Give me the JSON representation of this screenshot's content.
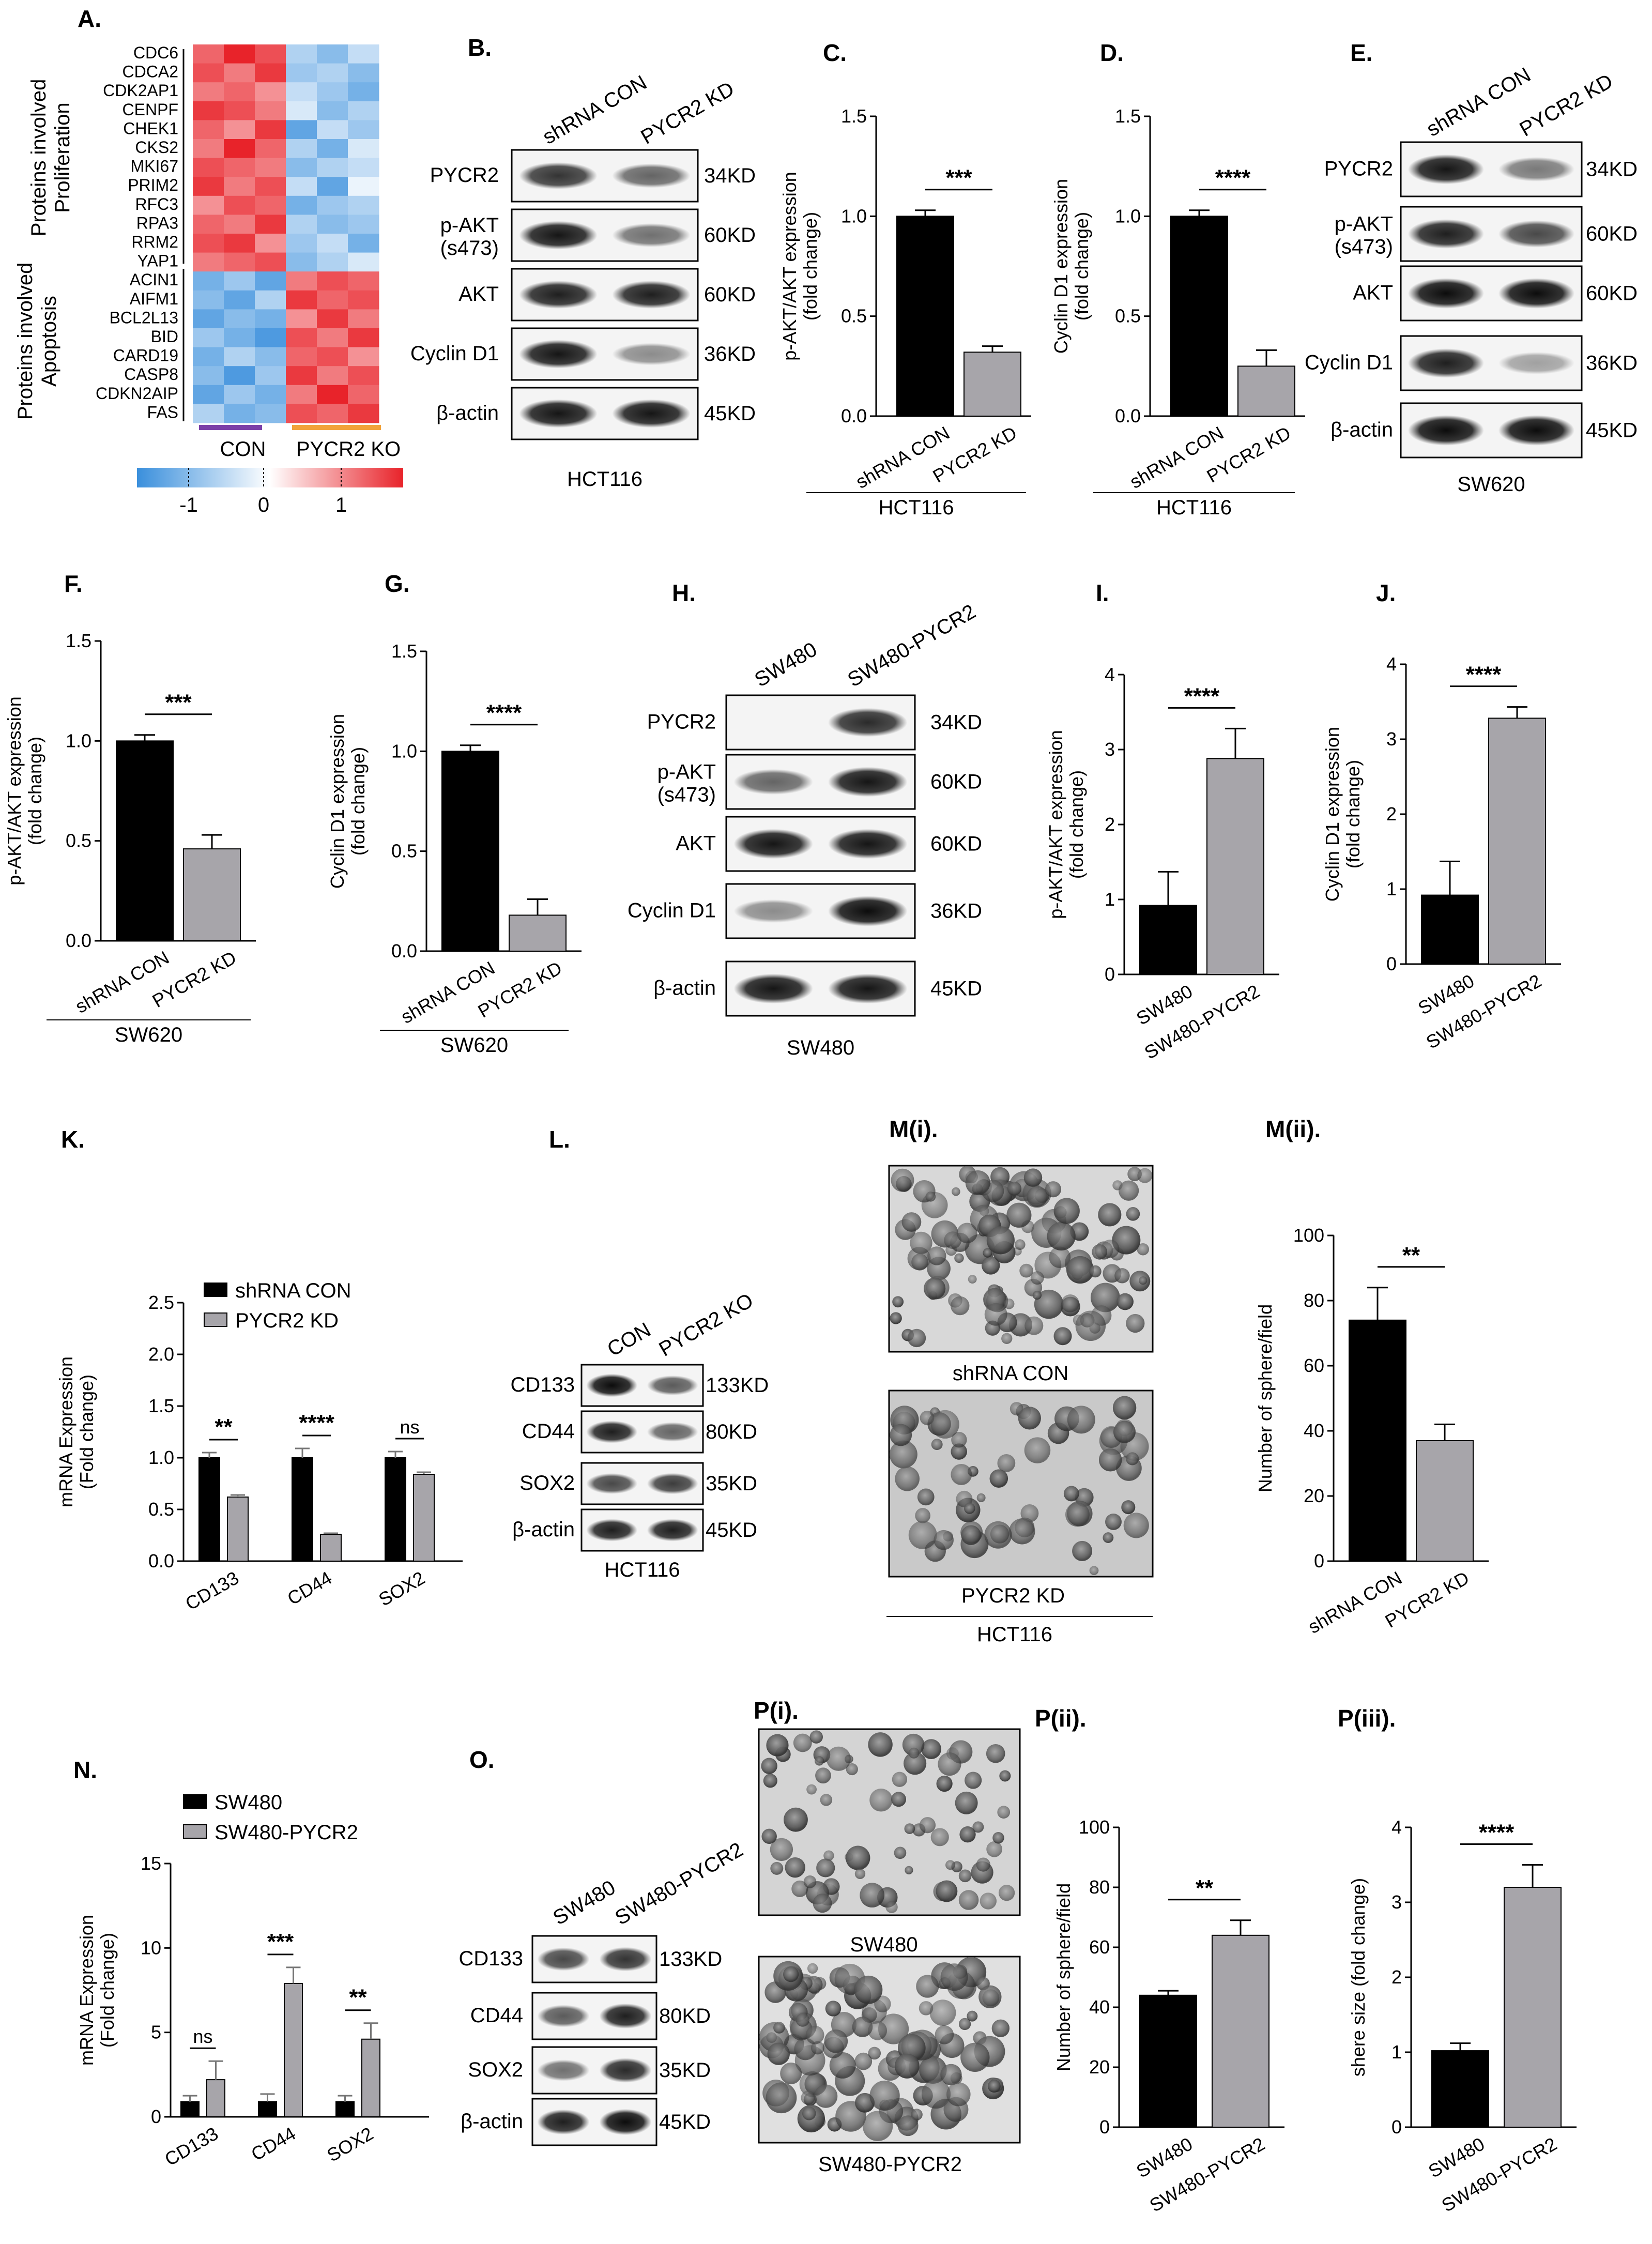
{
  "panel_labels": {
    "A": "A.",
    "B": "B.",
    "C": "C.",
    "D": "D.",
    "E": "E.",
    "F": "F.",
    "G": "G.",
    "H": "H.",
    "I": "I.",
    "J": "J.",
    "K": "K.",
    "L": "L.",
    "Mi": "M(i).",
    "Mii": "M(ii).",
    "N": "N.",
    "O": "O.",
    "Pi": "P(i).",
    "Pii": "P(ii).",
    "Piii": "P(iii)."
  },
  "heatmap": {
    "group_proliferation": "Proteins involved Proliferation",
    "group_apoptosis": "Proteins involved Apoptosis",
    "genes": [
      "CDC6",
      "CDCA2",
      "CDK2AP1",
      "CENPF",
      "CHEK1",
      "CKS2",
      "MKI67",
      "PRIM2",
      "RFC3",
      "RPA3",
      "RRM2",
      "YAP1",
      "ACIN1",
      "AIFM1",
      "BCL2L13",
      "BID",
      "CARD19",
      "CASP8",
      "CDKN2AIP",
      "FAS"
    ],
    "group_con": "CON",
    "group_ko": "PYCR2 KO",
    "scale_ticks": [
      "-1",
      "0",
      "1"
    ],
    "colors": {
      "low": "#3a8fdc",
      "mid": "#ffffff",
      "high": "#e8232a",
      "con_bar": "#7b3fa8",
      "ko_bar": "#f2a23a"
    },
    "values": [
      [
        0.7,
        1.0,
        0.8,
        -0.4,
        -0.6,
        -0.3
      ],
      [
        0.8,
        0.6,
        0.9,
        -0.5,
        -0.4,
        -0.6
      ],
      [
        0.6,
        0.7,
        0.5,
        -0.3,
        -0.5,
        -0.7
      ],
      [
        0.9,
        0.8,
        0.6,
        -0.2,
        -0.6,
        -0.4
      ],
      [
        0.7,
        0.5,
        0.9,
        -0.8,
        -0.3,
        -0.5
      ],
      [
        0.6,
        1.0,
        0.7,
        -0.4,
        -0.7,
        -0.2
      ],
      [
        0.8,
        0.7,
        0.6,
        -0.6,
        -0.4,
        -0.3
      ],
      [
        0.9,
        0.6,
        0.8,
        -0.3,
        -0.8,
        -0.1
      ],
      [
        0.5,
        0.8,
        0.7,
        -0.7,
        -0.5,
        -0.4
      ],
      [
        0.7,
        0.6,
        0.9,
        -0.4,
        -0.6,
        -0.5
      ],
      [
        0.8,
        0.9,
        0.5,
        -0.5,
        -0.3,
        -0.7
      ],
      [
        0.6,
        0.7,
        0.8,
        -0.6,
        -0.4,
        -0.2
      ],
      [
        -0.7,
        -0.5,
        -0.8,
        0.6,
        0.8,
        0.7
      ],
      [
        -0.6,
        -0.8,
        -0.4,
        0.9,
        0.7,
        0.8
      ],
      [
        -0.8,
        -0.6,
        -0.7,
        0.5,
        0.9,
        0.6
      ],
      [
        -0.5,
        -0.7,
        -0.9,
        0.8,
        0.6,
        0.9
      ],
      [
        -0.7,
        -0.4,
        -0.6,
        0.7,
        0.8,
        0.5
      ],
      [
        -0.6,
        -0.9,
        -0.5,
        0.9,
        0.6,
        0.8
      ],
      [
        -0.8,
        -0.5,
        -0.7,
        0.6,
        1.0,
        0.7
      ],
      [
        -0.4,
        -0.7,
        -0.6,
        0.8,
        0.7,
        0.9
      ]
    ]
  },
  "blots": {
    "B": {
      "lanes": [
        "shRNA CON",
        "PYCR2 KD"
      ],
      "rows": [
        "PYCR2",
        "p-AKT\n(s473)",
        "AKT",
        "Cyclin D1",
        "β-actin"
      ],
      "sizes": [
        "34KD",
        "60KD",
        "60KD",
        "36KD",
        "45KD"
      ],
      "cell": "HCT116"
    },
    "E": {
      "lanes": [
        "shRNA CON",
        "PYCR2 KD"
      ],
      "rows": [
        "PYCR2",
        "p-AKT\n(s473)",
        "AKT",
        "Cyclin D1",
        "β-actin"
      ],
      "sizes": [
        "34KD",
        "60KD",
        "60KD",
        "36KD",
        "45KD"
      ],
      "cell": "SW620"
    },
    "H": {
      "lanes": [
        "SW480",
        "SW480-PYCR2"
      ],
      "rows": [
        "PYCR2",
        "p-AKT\n(s473)",
        "AKT",
        "Cyclin D1",
        "β-actin"
      ],
      "sizes": [
        "34KD",
        "60KD",
        "60KD",
        "36KD",
        "45KD"
      ],
      "cell": "SW480"
    },
    "L": {
      "lanes": [
        "CON",
        "PYCR2 KO"
      ],
      "rows": [
        "CD133",
        "CD44",
        "SOX2",
        "β-actin"
      ],
      "sizes": [
        "133KD",
        "80KD",
        "35KD",
        "45KD"
      ],
      "cell": "HCT116"
    },
    "O": {
      "lanes": [
        "SW480",
        "SW480-PYCR2"
      ],
      "rows": [
        "CD133",
        "CD44",
        "SOX2",
        "β-actin"
      ],
      "sizes": [
        "133KD",
        "80KD",
        "35KD",
        "45KD"
      ],
      "cell": ""
    }
  },
  "images": {
    "Mi_top": "shRNA CON",
    "Mi_bottom": "PYCR2 KD",
    "Mi_group": "HCT116",
    "Pi_top": "SW480",
    "Pi_bottom": "SW480-PYCR2"
  },
  "chart_data": [
    {
      "id": "C",
      "type": "bar",
      "categories": [
        "shRNA CON",
        "PYCR2 KD"
      ],
      "values": [
        1.0,
        0.32
      ],
      "errors": [
        0.03,
        0.03
      ],
      "ylabel": "p-AKT/AKT expression\n(fold change)",
      "ylim": [
        0,
        1.5
      ],
      "yticks": [
        "0.0",
        "0.5",
        "1.0",
        "1.5"
      ],
      "group": "HCT116",
      "sig": "***"
    },
    {
      "id": "D",
      "type": "bar",
      "categories": [
        "shRNA CON",
        "PYCR2 KD"
      ],
      "values": [
        1.0,
        0.25
      ],
      "errors": [
        0.03,
        0.08
      ],
      "ylabel": "Cyclin D1 expression\n(fold change)",
      "ylim": [
        0,
        1.5
      ],
      "yticks": [
        "0.0",
        "0.5",
        "1.0",
        "1.5"
      ],
      "group": "HCT116",
      "sig": "****"
    },
    {
      "id": "F",
      "type": "bar",
      "categories": [
        "shRNA CON",
        "PYCR2 KD"
      ],
      "values": [
        1.0,
        0.46
      ],
      "errors": [
        0.03,
        0.07
      ],
      "ylabel": "p-AKT/AKT expression\n(fold change)",
      "ylim": [
        0,
        1.5
      ],
      "yticks": [
        "0.0",
        "0.5",
        "1.0",
        "1.5"
      ],
      "group": "SW620",
      "sig": "***"
    },
    {
      "id": "G",
      "type": "bar",
      "categories": [
        "shRNA CON",
        "PYCR2 KD"
      ],
      "values": [
        1.0,
        0.18
      ],
      "errors": [
        0.03,
        0.08
      ],
      "ylabel": "Cyclin D1 expression\n(fold change)",
      "ylim": [
        0,
        1.5
      ],
      "yticks": [
        "0.0",
        "0.5",
        "1.0",
        "1.5"
      ],
      "group": "SW620",
      "sig": "****"
    },
    {
      "id": "I",
      "type": "bar",
      "categories": [
        "SW480",
        "SW480-PYCR2"
      ],
      "values": [
        0.92,
        2.88
      ],
      "errors": [
        0.45,
        0.4
      ],
      "ylabel": "p-AKT/AKT expression\n(fold change)",
      "ylim": [
        0,
        4
      ],
      "yticks": [
        "0",
        "1",
        "2",
        "3",
        "4"
      ],
      "group": "",
      "sig": "****"
    },
    {
      "id": "J",
      "type": "bar",
      "categories": [
        "SW480",
        "SW480-PYCR2"
      ],
      "values": [
        0.92,
        3.28
      ],
      "errors": [
        0.45,
        0.15
      ],
      "ylabel": "Cyclin D1 expression\n(fold change)",
      "ylim": [
        0,
        4
      ],
      "yticks": [
        "0",
        "1",
        "2",
        "3",
        "4"
      ],
      "group": "",
      "sig": "****"
    },
    {
      "id": "Mii",
      "type": "bar",
      "categories": [
        "shRNA CON",
        "PYCR2 KD"
      ],
      "values": [
        74,
        37
      ],
      "errors": [
        10,
        5
      ],
      "ylabel": "Number of sphere/field",
      "ylim": [
        0,
        100
      ],
      "yticks": [
        "0",
        "20",
        "40",
        "60",
        "80",
        "100"
      ],
      "group": "",
      "sig": "**"
    },
    {
      "id": "Pii",
      "type": "bar",
      "categories": [
        "SW480",
        "SW480-PYCR2"
      ],
      "values": [
        44,
        64
      ],
      "errors": [
        1.5,
        5
      ],
      "ylabel": "Number of sphere/field",
      "ylim": [
        0,
        100
      ],
      "yticks": [
        "0",
        "20",
        "40",
        "60",
        "80",
        "100"
      ],
      "group": "",
      "sig": "**"
    },
    {
      "id": "Piii",
      "type": "bar",
      "categories": [
        "SW480",
        "SW480-PYCR2"
      ],
      "values": [
        1.02,
        3.2
      ],
      "errors": [
        0.1,
        0.3
      ],
      "ylabel": "shere size (fold change)",
      "ylim": [
        0,
        4
      ],
      "yticks": [
        "0",
        "1",
        "2",
        "3",
        "4"
      ],
      "group": "",
      "sig": "****"
    },
    {
      "id": "K",
      "type": "bar",
      "categories": [
        "CD133",
        "CD44",
        "SOX2"
      ],
      "series": [
        {
          "name": "shRNA CON",
          "values": [
            1.0,
            1.0,
            1.0
          ],
          "errors": [
            0.05,
            0.09,
            0.06
          ]
        },
        {
          "name": "PYCR2 KD",
          "values": [
            0.62,
            0.26,
            0.84
          ],
          "errors": [
            0.02,
            0.01,
            0.02
          ]
        }
      ],
      "ylabel": "mRNA Expression\n(Fold change)",
      "ylim": [
        0,
        2.5
      ],
      "yticks": [
        "0.0",
        "0.5",
        "1.0",
        "1.5",
        "2.0",
        "2.5"
      ],
      "sig": [
        "**",
        "****",
        "ns"
      ],
      "legend": "top-right"
    },
    {
      "id": "N",
      "type": "bar",
      "categories": [
        "CD133",
        "CD44",
        "SOX2"
      ],
      "series": [
        {
          "name": "SW480",
          "values": [
            0.9,
            0.9,
            0.9
          ],
          "errors": [
            0.35,
            0.45,
            0.35
          ]
        },
        {
          "name": "SW480-PYCR2",
          "values": [
            2.2,
            7.9,
            4.6
          ],
          "errors": [
            1.1,
            0.95,
            0.95
          ]
        }
      ],
      "ylabel": "mRNA Expression\n(Fold change)",
      "ylim": [
        0,
        15
      ],
      "yticks": [
        "0",
        "5",
        "10",
        "15"
      ],
      "sig": [
        "ns",
        "***",
        "**"
      ],
      "legend": "top-left"
    }
  ]
}
